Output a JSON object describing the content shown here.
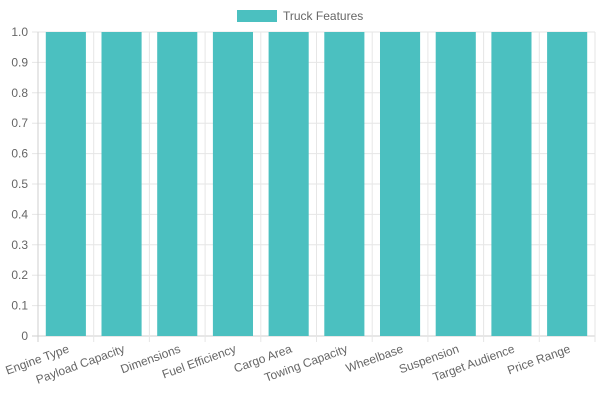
{
  "chart_data": {
    "type": "bar",
    "categories": [
      "Engine Type",
      "Payload Capacity",
      "Dimensions",
      "Fuel Efficiency",
      "Cargo Area",
      "Towing Capacity",
      "Wheelbase",
      "Suspension",
      "Target Audience",
      "Price Range"
    ],
    "series": [
      {
        "name": "Truck Features",
        "values": [
          1,
          1,
          1,
          1,
          1,
          1,
          1,
          1,
          1,
          1
        ],
        "color": "#4bc0c0"
      }
    ],
    "ylim": [
      0,
      1.0
    ],
    "yticks": [
      "0",
      "0.1",
      "0.2",
      "0.3",
      "0.4",
      "0.5",
      "0.6",
      "0.7",
      "0.8",
      "0.9",
      "1.0"
    ],
    "legend": "top-center",
    "grid": true
  }
}
